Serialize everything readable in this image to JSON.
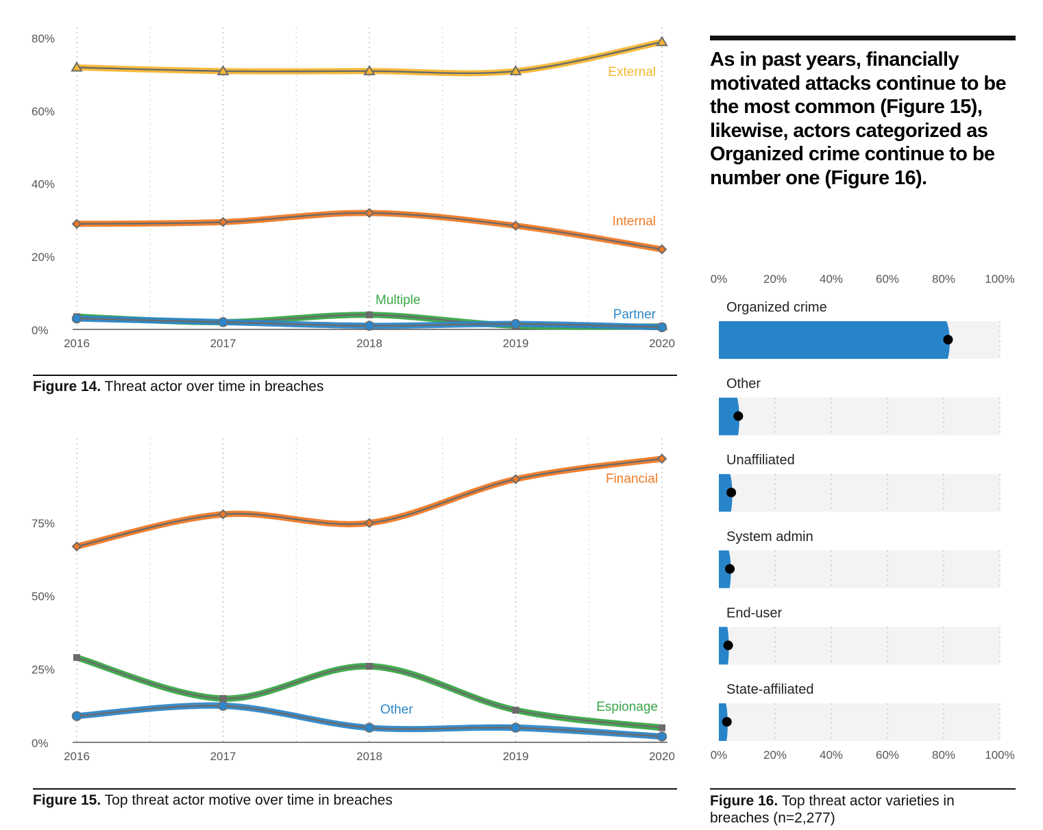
{
  "colors": {
    "external": "#f5b731",
    "internal": "#ef7a27",
    "green": "#3aa647",
    "blue": "#2e86c8",
    "median_line": "#6b6b6b",
    "bar_fill": "#2784c9",
    "bar_track": "#f2f3f2"
  },
  "headline": "As in past years, financially motivated attacks continue to be the most common (Figure 15), likewise, actors categorized as Organized crime continue to be number one (Figure 16).",
  "figure14": {
    "caption_bold": "Figure 14.",
    "caption_text": " Threat actor over time in breaches"
  },
  "figure15": {
    "caption_bold": "Figure 15.",
    "caption_text": " Top threat actor motive over time in breaches"
  },
  "figure16": {
    "caption_bold": "Figure 16.",
    "caption_text": " Top threat actor varieties in breaches (n=2,277)"
  },
  "chart_data": [
    {
      "id": "fig14",
      "type": "line",
      "x": [
        "2016",
        "2017",
        "2018",
        "2019",
        "2020"
      ],
      "yticks": [
        "0%",
        "20%",
        "40%",
        "60%",
        "80%"
      ],
      "ylim": [
        0,
        80
      ],
      "grid": "vertical dotted",
      "series": [
        {
          "name": "External",
          "values": [
            72,
            71,
            71,
            71,
            79
          ],
          "color_key": "external",
          "marker": "triangle"
        },
        {
          "name": "Internal",
          "values": [
            29,
            29.5,
            32,
            28.5,
            22
          ],
          "color_key": "internal",
          "marker": "diamond"
        },
        {
          "name": "Multiple",
          "values": [
            3.5,
            2,
            4,
            1,
            0.8
          ],
          "color_key": "green",
          "marker": "square"
        },
        {
          "name": "Partner",
          "values": [
            3,
            2,
            1,
            1.5,
            0.6
          ],
          "color_key": "blue",
          "marker": "circle"
        }
      ]
    },
    {
      "id": "fig15",
      "type": "line",
      "x": [
        "2016",
        "2017",
        "2018",
        "2019",
        "2020"
      ],
      "yticks": [
        "0%",
        "25%",
        "50%",
        "75%"
      ],
      "ylim": [
        0,
        100
      ],
      "grid": "vertical dotted",
      "series": [
        {
          "name": "Financial",
          "values": [
            67,
            78,
            75,
            90,
            97
          ],
          "color_key": "internal",
          "marker": "diamond"
        },
        {
          "name": "Espionage",
          "values": [
            29,
            15,
            26,
            11,
            5
          ],
          "color_key": "green",
          "marker": "square"
        },
        {
          "name": "Other",
          "values": [
            9,
            12.5,
            5,
            5,
            2
          ],
          "color_key": "blue",
          "marker": "circle"
        }
      ]
    },
    {
      "id": "fig16",
      "type": "bar",
      "orientation": "horizontal",
      "xticks": [
        "0%",
        "20%",
        "40%",
        "60%",
        "80%",
        "100%"
      ],
      "xlim": [
        0,
        100
      ],
      "categories": [
        "Organized crime",
        "Other",
        "Unaffiliated",
        "System admin",
        "End-user",
        "State-affiliated"
      ],
      "values": [
        81,
        6.5,
        4,
        3.5,
        3,
        2.5
      ],
      "upper": [
        82.5,
        7.5,
        5,
        4.5,
        3.7,
        3.3
      ]
    }
  ]
}
